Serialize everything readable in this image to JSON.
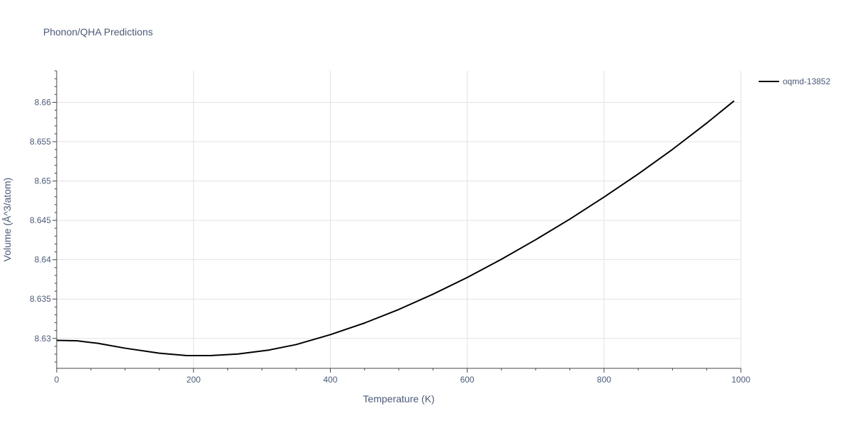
{
  "chart_data": {
    "type": "line",
    "title": "Phonon/QHA Predictions",
    "xlabel": "Temperature (K)",
    "ylabel": "Volume (Å^3/atom)",
    "xlim": [
      0,
      1000
    ],
    "ylim": [
      8.6262,
      8.664
    ],
    "x_ticks": [
      0,
      200,
      400,
      600,
      800,
      1000
    ],
    "x_tick_labels": [
      "0",
      "200",
      "400",
      "600",
      "800",
      "1000"
    ],
    "y_ticks": [
      8.63,
      8.635,
      8.64,
      8.645,
      8.65,
      8.655,
      8.66
    ],
    "y_tick_labels": [
      "8.63",
      "8.635",
      "8.64",
      "8.645",
      "8.65",
      "8.655",
      "8.66"
    ],
    "grid": true,
    "legend_position": "top-right",
    "series": [
      {
        "name": "oqmd-13852",
        "color": "#000000",
        "x": [
          0,
          30,
          60,
          100,
          150,
          190,
          225,
          265,
          310,
          350,
          400,
          450,
          500,
          550,
          600,
          650,
          700,
          750,
          800,
          850,
          900,
          950,
          990
        ],
        "y": [
          8.62976,
          8.6297,
          8.62938,
          8.62876,
          8.62812,
          8.62782,
          8.62782,
          8.62802,
          8.62852,
          8.62922,
          8.63048,
          8.63196,
          8.63368,
          8.63562,
          8.63774,
          8.64006,
          8.64254,
          8.64516,
          8.64796,
          8.6509,
          8.65402,
          8.65736,
          8.66018
        ]
      }
    ]
  }
}
